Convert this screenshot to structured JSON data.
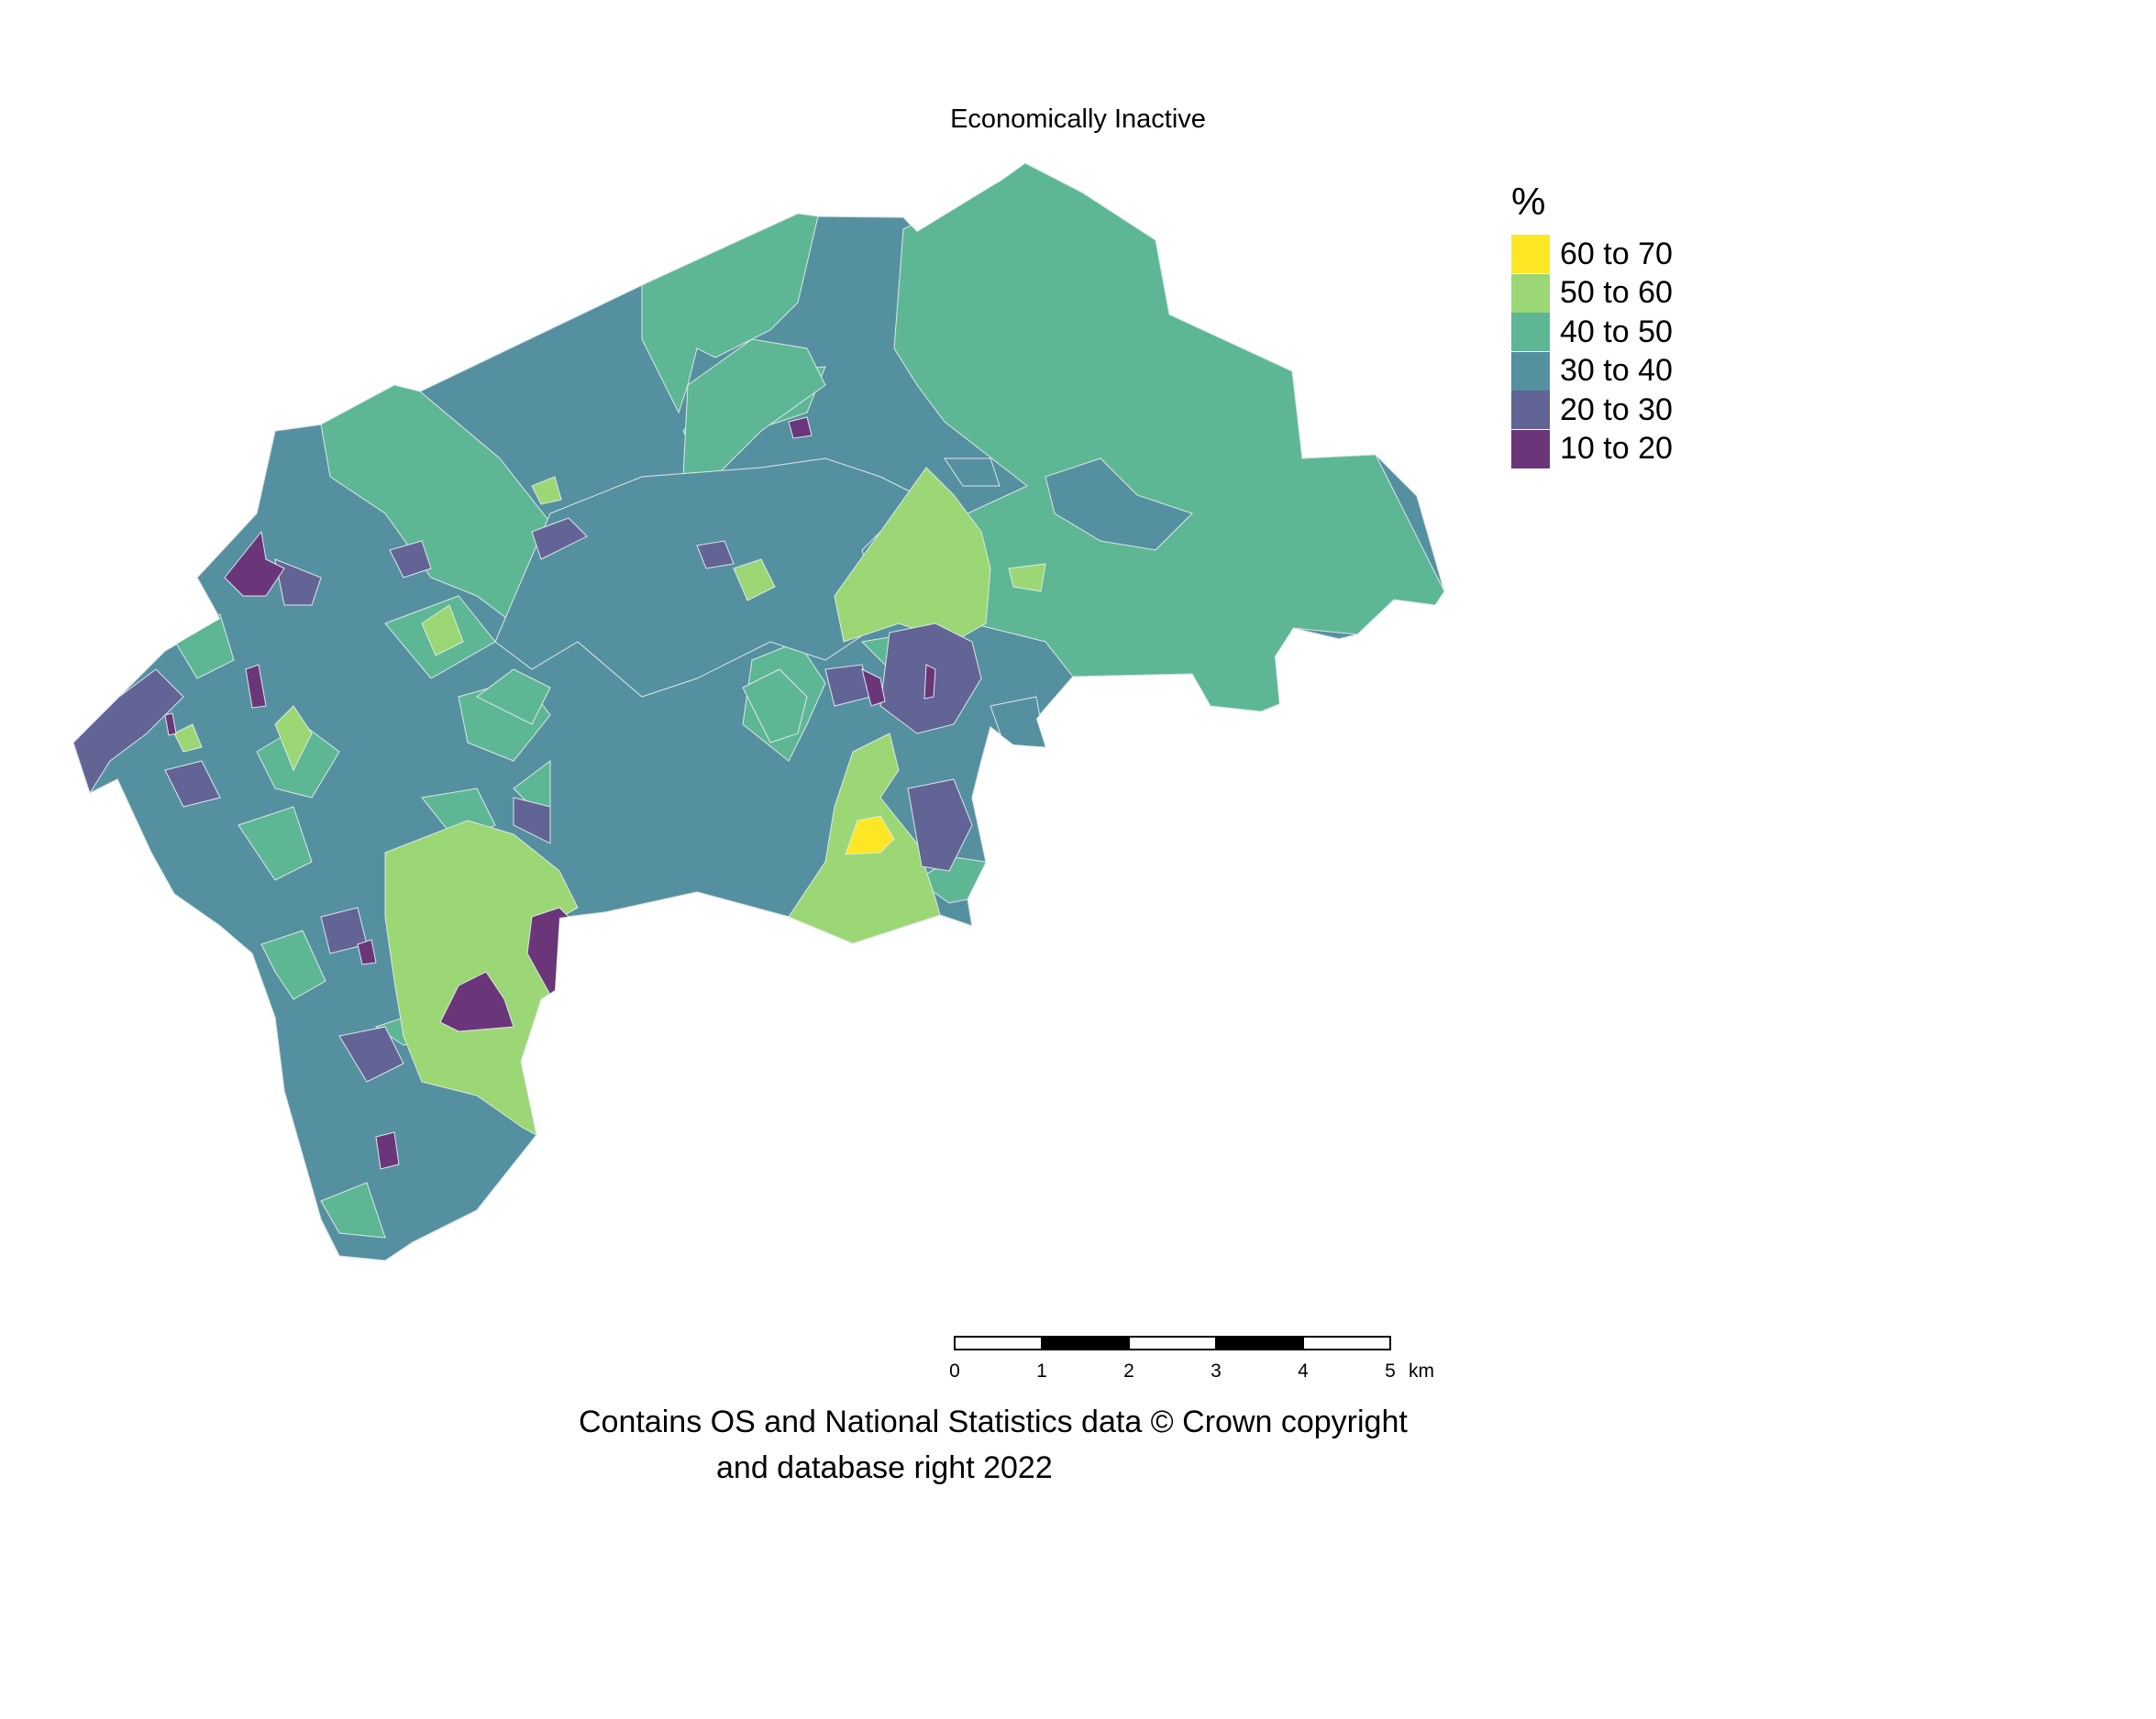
{
  "title": "Economically Inactive",
  "legend": {
    "title": "%",
    "items": [
      {
        "label": "60 to 70",
        "color": "#fde725"
      },
      {
        "label": "50 to 60",
        "color": "#9bd774"
      },
      {
        "label": "40 to 50",
        "color": "#5db795"
      },
      {
        "label": "30 to 40",
        "color": "#5590a0"
      },
      {
        "label": "20 to 30",
        "color": "#626495"
      },
      {
        "label": "10 to 20",
        "color": "#6a3679"
      }
    ]
  },
  "scale_bar": {
    "ticks": [
      "0",
      "1",
      "2",
      "3",
      "4",
      "5"
    ],
    "unit": "km"
  },
  "credit": {
    "line1": "Contains OS and National Statistics data © Crown copyright",
    "line2": "and database right 2022"
  }
}
